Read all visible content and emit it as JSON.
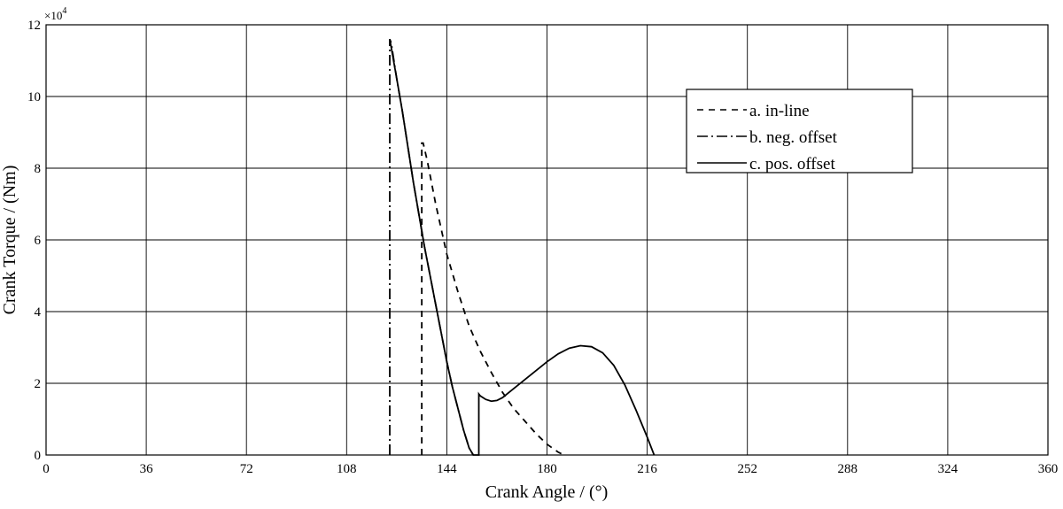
{
  "chart_data": {
    "type": "line",
    "title": "",
    "xlabel": "Crank Angle / (°)",
    "ylabel": "Crank Torque / (Nm)",
    "y_multiplier_label": "×10",
    "y_multiplier_exponent": "4",
    "xlim": [
      0,
      360
    ],
    "ylim": [
      0,
      12
    ],
    "x_ticks": [
      0,
      36,
      72,
      108,
      144,
      180,
      216,
      252,
      288,
      324,
      360
    ],
    "x_tick_labels": [
      "0",
      "36",
      "72",
      "108",
      "144",
      "180",
      "216",
      "252",
      "288",
      "324",
      "360"
    ],
    "y_ticks": [
      0,
      2,
      4,
      6,
      8,
      10,
      12
    ],
    "y_tick_labels": [
      "0",
      "2",
      "4",
      "6",
      "8",
      "10",
      "12"
    ],
    "grid": true,
    "legend_position": "top-right",
    "series": [
      {
        "name": "a. in-line",
        "style": "dashed",
        "color": "#000000",
        "x": [
          135,
          135,
          135.5,
          137,
          140,
          144,
          148,
          152,
          156,
          160,
          164,
          168,
          172,
          176,
          180,
          184,
          186
        ],
        "y": [
          0,
          8.7,
          8.7,
          8.2,
          7.0,
          5.6,
          4.55,
          3.6,
          2.9,
          2.3,
          1.75,
          1.3,
          0.95,
          0.6,
          0.3,
          0.08,
          0
        ]
      },
      {
        "name": "b. neg. offset",
        "style": "dashdot",
        "color": "#000000",
        "x": [
          123.5,
          123.5,
          124,
          126,
          128,
          130,
          132,
          134,
          136,
          138,
          140,
          142,
          144,
          146,
          148,
          150,
          152,
          153.5
        ],
        "y": [
          0,
          11.6,
          11.5,
          10.5,
          9.6,
          8.6,
          7.6,
          6.7,
          5.8,
          5.0,
          4.2,
          3.4,
          2.6,
          1.9,
          1.3,
          0.7,
          0.2,
          0
        ]
      },
      {
        "name": "c. pos. offset",
        "style": "solid",
        "color": "#000000",
        "x": [
          123.5,
          126,
          128,
          130,
          132,
          134,
          136,
          138,
          140,
          142,
          144,
          146,
          148,
          150,
          152,
          153.5,
          155.5,
          155.5,
          156,
          158,
          160,
          162,
          164,
          168,
          172,
          176,
          180,
          184,
          188,
          192,
          196,
          200,
          204,
          208,
          212,
          216,
          218.5
        ],
        "y": [
          11.6,
          10.5,
          9.6,
          8.6,
          7.6,
          6.7,
          5.8,
          5.0,
          4.2,
          3.4,
          2.6,
          1.9,
          1.3,
          0.7,
          0.2,
          0,
          0,
          1.7,
          1.65,
          1.55,
          1.5,
          1.52,
          1.6,
          1.85,
          2.1,
          2.35,
          2.6,
          2.82,
          2.98,
          3.05,
          3.02,
          2.85,
          2.5,
          1.95,
          1.25,
          0.5,
          0
        ]
      }
    ]
  }
}
